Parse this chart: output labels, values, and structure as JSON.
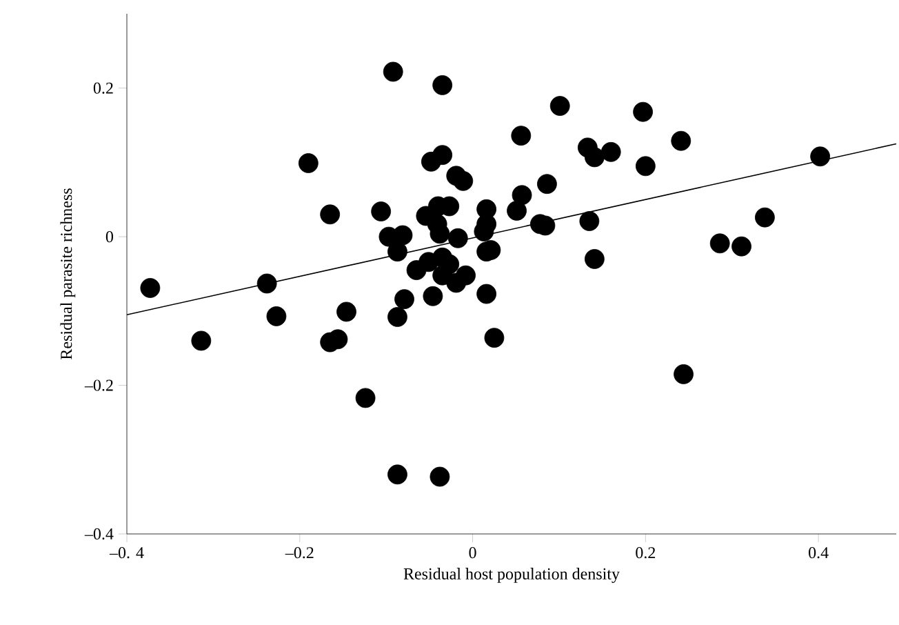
{
  "chart_data": {
    "type": "scatter",
    "xlabel": "Residual host population density",
    "ylabel": "Residual parasite richness",
    "xlim": [
      -0.4,
      0.49
    ],
    "ylim": [
      -0.4,
      0.3
    ],
    "xticks": [
      {
        "value": -0.4,
        "label": "–0. 4"
      },
      {
        "value": -0.2,
        "label": "–0.2"
      },
      {
        "value": 0,
        "label": "0"
      },
      {
        "value": 0.2,
        "label": "0.2"
      },
      {
        "value": 0.4,
        "label": "0.4"
      }
    ],
    "yticks": [
      {
        "value": -0.4,
        "label": "–0.4"
      },
      {
        "value": -0.2,
        "label": "–0.2"
      },
      {
        "value": 0,
        "label": "0"
      },
      {
        "value": 0.2,
        "label": "0.2"
      }
    ],
    "series": [
      {
        "marker": "circle",
        "color": "#000000",
        "x": [
          -0.373,
          -0.314,
          -0.238,
          -0.227,
          -0.19,
          -0.165,
          -0.165,
          -0.156,
          -0.146,
          -0.124,
          -0.106,
          -0.092,
          -0.097,
          -0.081,
          -0.087,
          -0.087,
          -0.079,
          -0.087,
          -0.038,
          -0.065,
          -0.046,
          -0.035,
          -0.048,
          -0.035,
          -0.019,
          -0.011,
          -0.054,
          -0.04,
          -0.027,
          -0.041,
          -0.038,
          -0.017,
          -0.051,
          -0.035,
          -0.027,
          -0.035,
          -0.019,
          -0.008,
          0.016,
          0.016,
          0.016,
          0.016,
          0.013,
          0.021,
          0.025,
          0.056,
          0.101,
          0.057,
          0.051,
          0.086,
          0.078,
          0.084,
          0.135,
          0.141,
          0.133,
          0.141,
          0.16,
          0.197,
          0.2,
          0.241,
          0.244,
          0.286,
          0.311,
          0.338,
          0.402
        ],
        "values": [
          -0.069,
          -0.14,
          -0.063,
          -0.107,
          0.099,
          0.03,
          -0.142,
          -0.138,
          -0.101,
          -0.217,
          0.034,
          0.222,
          0.0,
          0.002,
          -0.02,
          -0.108,
          -0.084,
          -0.32,
          -0.323,
          -0.045,
          -0.08,
          0.204,
          0.101,
          0.11,
          0.082,
          0.075,
          0.028,
          0.041,
          0.041,
          0.017,
          0.004,
          -0.002,
          -0.034,
          -0.028,
          -0.037,
          -0.052,
          -0.062,
          -0.052,
          0.037,
          0.017,
          -0.02,
          -0.077,
          0.007,
          -0.018,
          -0.136,
          0.136,
          0.176,
          0.056,
          0.035,
          0.071,
          0.017,
          0.015,
          0.021,
          -0.03,
          0.12,
          0.107,
          0.114,
          0.168,
          0.095,
          0.129,
          -0.185,
          -0.009,
          -0.013,
          0.026,
          0.108
        ]
      },
      {
        "type": "line",
        "color": "#000000",
        "x": [
          -0.4,
          0.49
        ],
        "values": [
          -0.105,
          0.125
        ]
      }
    ]
  }
}
